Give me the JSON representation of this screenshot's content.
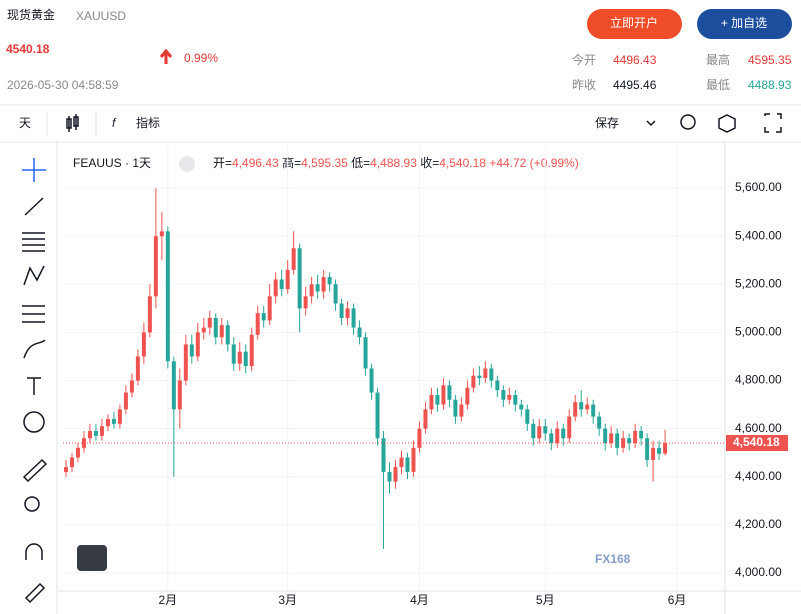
{
  "header": {
    "title": "现货黄金",
    "symbol": "XAUUSD",
    "price": "4540.18",
    "change": "0.99%",
    "timestamp": "2026-05-30 04:58:59",
    "buttons": [
      "立即开户",
      "+ 加自选"
    ],
    "stats": [
      {
        "label": "今开",
        "value": "4496.43"
      },
      {
        "label": "最高",
        "value": "4595.35"
      },
      {
        "label": "昨收",
        "value": "4495.46"
      },
      {
        "label": "最低",
        "value": "4488.93"
      }
    ]
  },
  "toolbar": {
    "interval": "天",
    "indicators": "指标",
    "save": "保存"
  },
  "chart_data": {
    "type": "candlestick",
    "legend_symbol": "FEAUUS · 1天",
    "legend_ohlc": [
      {
        "label": "开=",
        "value": "4,496.43"
      },
      {
        "label": "高=",
        "value": "4,595.35"
      },
      {
        "label": "低=",
        "value": "4,488.93"
      },
      {
        "label": "收=",
        "value": "4,540.18"
      }
    ],
    "legend_change": "+44.72 (+0.99%)",
    "up_color": "#ef5350",
    "down_color": "#26a69a",
    "open": [
      4420,
      4440,
      4480,
      4520,
      4560,
      4590,
      4570,
      4610,
      4640,
      4620,
      4680,
      4750,
      4800,
      4900,
      5000,
      5150,
      5400,
      5420,
      4880,
      4680,
      4800,
      4950,
      4900,
      5000,
      5020,
      5060,
      4980,
      5030,
      4950,
      4870,
      4920,
      4860,
      4990,
      5080,
      5050,
      5150,
      5220,
      5180,
      5260,
      5350,
      5100,
      5150,
      5200,
      5170,
      5230,
      5200,
      5120,
      5060,
      5100,
      5020,
      4980,
      4850,
      4750,
      4560,
      4420,
      4380,
      4440,
      4480,
      4420,
      4520,
      4600,
      4680,
      4740,
      4700,
      4780,
      4720,
      4650,
      4700,
      4770,
      4820,
      4810,
      4850,
      4800,
      4760,
      4720,
      4740,
      4700,
      4680,
      4620,
      4560,
      4610,
      4580,
      4540,
      4600,
      4560,
      4650,
      4710,
      4680,
      4700,
      4650,
      4600,
      4540,
      4580,
      4520,
      4560,
      4540,
      4590,
      4560,
      4470,
      4520,
      4496.43
    ],
    "high": [
      4470,
      4500,
      4540,
      4590,
      4620,
      4620,
      4640,
      4660,
      4670,
      4700,
      4780,
      4830,
      4930,
      5040,
      5200,
      5600,
      5500,
      5440,
      4900,
      4850,
      4990,
      4990,
      5040,
      5060,
      5090,
      5080,
      5060,
      5050,
      4980,
      4960,
      4950,
      5020,
      5110,
      5110,
      5200,
      5250,
      5260,
      5300,
      5420,
      5370,
      5190,
      5230,
      5240,
      5260,
      5250,
      5220,
      5140,
      5130,
      5120,
      5050,
      5000,
      4870,
      4770,
      4590,
      4460,
      4470,
      4510,
      4500,
      4550,
      4630,
      4710,
      4770,
      4770,
      4810,
      4800,
      4740,
      4730,
      4800,
      4850,
      4860,
      4880,
      4870,
      4820,
      4780,
      4770,
      4760,
      4720,
      4700,
      4640,
      4640,
      4640,
      4600,
      4630,
      4620,
      4680,
      4740,
      4760,
      4730,
      4720,
      4670,
      4620,
      4610,
      4600,
      4590,
      4580,
      4620,
      4610,
      4580,
      4550,
      4550,
      4595.35
    ],
    "low": [
      4400,
      4420,
      4460,
      4500,
      4540,
      4550,
      4550,
      4590,
      4600,
      4600,
      4660,
      4730,
      4780,
      4870,
      4980,
      5100,
      5300,
      4850,
      4400,
      4600,
      4780,
      4870,
      4880,
      4970,
      4990,
      4950,
      4950,
      4920,
      4840,
      4840,
      4830,
      4840,
      4970,
      5020,
      5030,
      5120,
      5150,
      5160,
      5240,
      5000,
      5070,
      5120,
      5140,
      5140,
      5170,
      5090,
      5030,
      5030,
      4990,
      4950,
      4820,
      4720,
      4530,
      4100,
      4330,
      4350,
      4410,
      4390,
      4400,
      4500,
      4580,
      4660,
      4670,
      4680,
      4690,
      4620,
      4630,
      4680,
      4750,
      4780,
      4790,
      4770,
      4730,
      4690,
      4700,
      4670,
      4650,
      4590,
      4530,
      4540,
      4550,
      4510,
      4520,
      4530,
      4540,
      4630,
      4650,
      4660,
      4620,
      4570,
      4510,
      4520,
      4490,
      4500,
      4510,
      4520,
      4530,
      4440,
      4380,
      4470,
      4488.93
    ],
    "close": [
      4440,
      4480,
      4520,
      4560,
      4590,
      4570,
      4610,
      4640,
      4620,
      4680,
      4750,
      4800,
      4900,
      5000,
      5150,
      5400,
      5420,
      4880,
      4680,
      4800,
      4950,
      4900,
      5000,
      5020,
      5060,
      4980,
      5030,
      4950,
      4870,
      4920,
      4860,
      4990,
      5080,
      5050,
      5150,
      5220,
      5180,
      5260,
      5350,
      5100,
      5150,
      5200,
      5170,
      5230,
      5200,
      5120,
      5060,
      5100,
      5020,
      4980,
      4850,
      4750,
      4560,
      4420,
      4380,
      4440,
      4480,
      4420,
      4520,
      4600,
      4680,
      4740,
      4700,
      4780,
      4720,
      4650,
      4700,
      4770,
      4820,
      4810,
      4850,
      4800,
      4760,
      4720,
      4740,
      4700,
      4680,
      4620,
      4560,
      4610,
      4580,
      4540,
      4600,
      4560,
      4650,
      4710,
      4680,
      4700,
      4650,
      4600,
      4540,
      4580,
      4520,
      4560,
      4540,
      4590,
      4560,
      4470,
      4520,
      4495.46,
      4540.18
    ],
    "xlim": [
      -0.5,
      110
    ],
    "xticks": [
      {
        "value": 17,
        "label": "2月"
      },
      {
        "value": 37,
        "label": "3月"
      },
      {
        "value": 59,
        "label": "4月"
      },
      {
        "value": 80,
        "label": "5月"
      },
      {
        "value": 102,
        "label": "6月"
      }
    ],
    "ylim": [
      3925,
      5779
    ],
    "yticks": [
      {
        "value": 4000,
        "label": "4,000.00"
      },
      {
        "value": 4200,
        "label": "4,200.00"
      },
      {
        "value": 4400,
        "label": "4,400.00"
      },
      {
        "value": 4600,
        "label": "4,600.00"
      },
      {
        "value": 4800,
        "label": "4,800.00"
      },
      {
        "value": 5000,
        "label": "5,000.00"
      },
      {
        "value": 5200,
        "label": "5,200.00"
      },
      {
        "value": 5400,
        "label": "5,400.00"
      },
      {
        "value": 5600,
        "label": "5,600.00"
      }
    ],
    "last_price": {
      "value": 4540.18,
      "label": "4,540.18"
    }
  },
  "watermark": "FX168"
}
